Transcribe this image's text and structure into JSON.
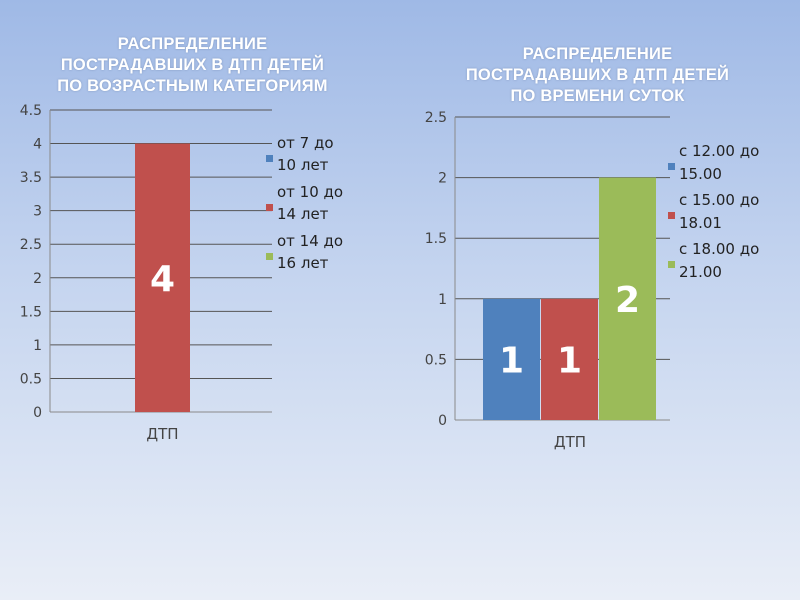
{
  "charts": [
    {
      "title_lines": [
        "РАСПРЕДЕЛЕНИЕ",
        "ПОСТРАДАВШИХ В ДТП ДЕТЕЙ",
        "ПО ВОЗРАСТНЫМ КАТЕГОРИЯМ"
      ]
    },
    {
      "title_lines": [
        "РАСПРЕДЕЛЕНИЕ",
        "ПОСТРАДАВШИХ В ДТП ДЕТЕЙ",
        "ПО ВРЕМЕНИ СУТОК"
      ]
    }
  ],
  "chart_data": [
    {
      "type": "bar",
      "title": "РАСПРЕДЕЛЕНИЕ ПОСТРАДАВШИХ В ДТП ДЕТЕЙ ПО ВОЗРАСТНЫМ КАТЕГОРИЯМ",
      "categories": [
        "ДТП"
      ],
      "ylim": [
        0,
        4.5
      ],
      "yticks": [
        "0",
        "0.5",
        "1",
        "1.5",
        "2",
        "2.5",
        "3",
        "3.5",
        "4",
        "4.5"
      ],
      "grid": true,
      "legend_position": "right",
      "series": [
        {
          "name": "от 7 до 10 лет",
          "values": [
            0
          ],
          "color": "#4f81bd"
        },
        {
          "name": "от 10 до 14 лет",
          "values": [
            4
          ],
          "color": "#c0504d",
          "data_label": "4"
        },
        {
          "name": "от 14 до 16 лет",
          "values": [
            0
          ],
          "color": "#9bbb59"
        }
      ],
      "legend_lines": [
        [
          "от 7 до",
          "10 лет"
        ],
        [
          "от 10 до",
          "14 лет"
        ],
        [
          "от 14 до",
          "16 лет"
        ]
      ]
    },
    {
      "type": "bar",
      "title": "РАСПРЕДЕЛЕНИЕ ПОСТРАДАВШИХ В ДТП ДЕТЕЙ ПО ВРЕМЕНИ СУТОК",
      "categories": [
        "ДТП"
      ],
      "ylim": [
        0,
        2.5
      ],
      "yticks": [
        "0",
        "0.5",
        "1",
        "1.5",
        "2",
        "2.5"
      ],
      "grid": true,
      "legend_position": "right",
      "series": [
        {
          "name": "с 12.00 до 15.00",
          "values": [
            1
          ],
          "color": "#4f81bd",
          "data_label": "1"
        },
        {
          "name": "с 15.00 до 18.01",
          "values": [
            1
          ],
          "color": "#c0504d",
          "data_label": "1"
        },
        {
          "name": "с 18.00 до 21.00",
          "values": [
            2
          ],
          "color": "#9bbb59",
          "data_label": "2"
        }
      ],
      "legend_lines": [
        [
          "с 12.00 до",
          "15.00"
        ],
        [
          "с 15.00 до",
          "18.01"
        ],
        [
          "с 18.00 до",
          "21.00"
        ]
      ]
    }
  ]
}
